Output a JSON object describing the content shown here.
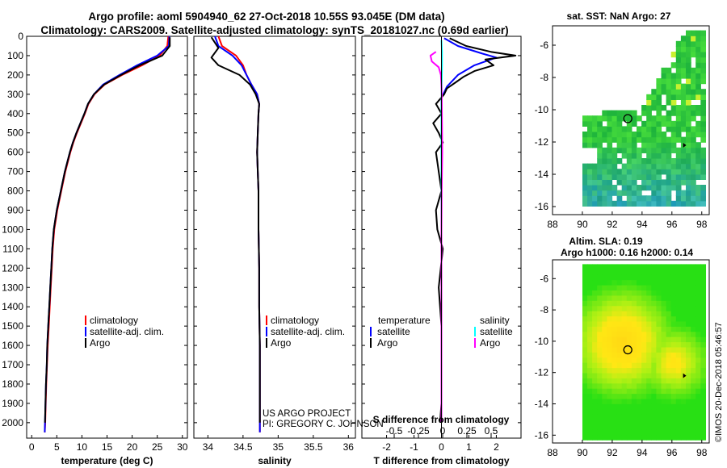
{
  "title_line1": "Argo profile: aoml 5904940_62 27-Oct-2018 10.55S 93.045E (DM data)",
  "title_line2": "Climatology: CARS2009. Satellite-adjusted climatology: synTS_20181027.nc (0.69d earlier)",
  "sst_title": "sat. SST: NaN Argo: 27",
  "sla_title1": "Altim. SLA: 0.19",
  "sla_title2": "Argo h1000: 0.16 h2000: 0.14",
  "credit": "©IMOS 20-Dec-2018 05:46:57",
  "project_line1": "US ARGO PROJECT",
  "project_line2": "PI: GREGORY C. JOHNSON",
  "colors": {
    "red": "#ff0000",
    "blue": "#0000ff",
    "black": "#000000",
    "magenta": "#ff00ff",
    "cyan": "#00ffff"
  },
  "chart_data": [
    {
      "type": "line",
      "id": "temperature",
      "xlabel": "temperature (deg C)",
      "ylabel": "depth",
      "xlim": [
        -1,
        31
      ],
      "ylim": [
        2080,
        0
      ],
      "xticks": [
        0,
        5,
        10,
        15,
        20,
        25,
        30
      ],
      "xtick_labels": [
        "0",
        "5",
        "10",
        "15",
        "20",
        "25",
        "30"
      ],
      "yticks": [
        0,
        100,
        200,
        300,
        400,
        500,
        600,
        700,
        800,
        900,
        1000,
        1100,
        1200,
        1300,
        1400,
        1500,
        1600,
        1700,
        1800,
        1900,
        2000
      ],
      "legend": [
        "climatology",
        "satellite-adj. clim.",
        "Argo"
      ],
      "series": [
        {
          "name": "climatology",
          "color": "red",
          "x": [
            27.2,
            27.0,
            25.5,
            22.0,
            18.0,
            14.5,
            12.5,
            11.3,
            10.6,
            9.8,
            9.0,
            8.3,
            7.7,
            7.2,
            6.7,
            6.3,
            5.9,
            5.5,
            5.1,
            4.8,
            4.5,
            4.2,
            4.0,
            3.8,
            3.6,
            3.4,
            3.2,
            3.05,
            2.9,
            2.8,
            2.7,
            2.6
          ],
          "depth": [
            0,
            50,
            100,
            150,
            200,
            250,
            300,
            350,
            400,
            450,
            500,
            550,
            600,
            650,
            700,
            750,
            800,
            850,
            900,
            950,
            1000,
            1100,
            1200,
            1300,
            1400,
            1500,
            1600,
            1700,
            1800,
            1900,
            2000,
            2050
          ]
        },
        {
          "name": "satellite-adj. clim.",
          "color": "blue",
          "x": [
            27.4,
            27.3,
            25.0,
            21.0,
            17.5,
            14.2,
            12.4,
            11.2,
            10.5,
            9.7,
            8.9,
            8.2,
            7.6,
            7.1,
            6.6,
            6.2,
            5.8,
            5.4,
            5.0,
            4.7,
            4.4,
            4.1,
            3.9,
            3.7,
            3.5,
            3.3,
            3.1,
            3.0,
            2.85,
            2.75,
            2.65,
            2.6
          ],
          "depth": [
            0,
            50,
            100,
            150,
            200,
            250,
            300,
            350,
            400,
            450,
            500,
            550,
            600,
            650,
            700,
            750,
            800,
            850,
            900,
            950,
            1000,
            1100,
            1200,
            1300,
            1400,
            1500,
            1600,
            1700,
            1800,
            1900,
            2000,
            2050
          ]
        },
        {
          "name": "Argo",
          "color": "black",
          "x": [
            27.5,
            27.5,
            26.0,
            21.5,
            17.8,
            14.4,
            12.4,
            11.2,
            10.5,
            9.7,
            8.9,
            8.2,
            7.6,
            7.1,
            6.6,
            6.2,
            5.8,
            5.4,
            5.0,
            4.7,
            4.4,
            4.1,
            3.9,
            3.7,
            3.5,
            3.3,
            3.1,
            3.0,
            2.85,
            2.75,
            2.65
          ],
          "depth": [
            5,
            50,
            100,
            150,
            200,
            250,
            300,
            350,
            400,
            450,
            500,
            550,
            600,
            650,
            700,
            750,
            800,
            850,
            900,
            950,
            1000,
            1100,
            1200,
            1300,
            1400,
            1500,
            1600,
            1700,
            1800,
            1900,
            2000
          ]
        }
      ]
    },
    {
      "type": "line",
      "id": "salinity",
      "xlabel": "salinity",
      "xlim": [
        33.8,
        36.1
      ],
      "ylim": [
        2080,
        0
      ],
      "xticks": [
        34,
        34.5,
        35,
        35.5,
        36
      ],
      "xtick_labels": [
        "34",
        "34.5",
        "35",
        "35.5",
        "36"
      ],
      "legend": [
        "climatology",
        "satellite-adj. clim.",
        "Argo"
      ],
      "series": [
        {
          "name": "climatology",
          "color": "red",
          "x": [
            34.15,
            34.2,
            34.4,
            34.5,
            34.55,
            34.62,
            34.7,
            34.73,
            34.72,
            34.71,
            34.7,
            34.71,
            34.72,
            34.72,
            34.73,
            34.73,
            34.74,
            34.74,
            34.74,
            34.74
          ],
          "depth": [
            0,
            50,
            100,
            150,
            200,
            250,
            300,
            350,
            400,
            500,
            600,
            700,
            800,
            1000,
            1200,
            1400,
            1600,
            1800,
            2000,
            2050
          ]
        },
        {
          "name": "satellite-adj. clim.",
          "color": "blue",
          "x": [
            34.1,
            34.15,
            34.35,
            34.48,
            34.55,
            34.62,
            34.7,
            34.73,
            34.72,
            34.71,
            34.7,
            34.71,
            34.72,
            34.72,
            34.73,
            34.73,
            34.74,
            34.74,
            34.74,
            34.74
          ],
          "depth": [
            0,
            50,
            100,
            150,
            200,
            250,
            300,
            350,
            400,
            500,
            600,
            700,
            800,
            1000,
            1200,
            1400,
            1600,
            1800,
            2000,
            2050
          ]
        },
        {
          "name": "Argo",
          "color": "black",
          "x": [
            34.05,
            34.15,
            34.05,
            34.15,
            34.45,
            34.6,
            34.68,
            34.73,
            34.72,
            34.71,
            34.7,
            34.71,
            34.72,
            34.72,
            34.73,
            34.73,
            34.74,
            34.74,
            34.74
          ],
          "depth": [
            5,
            60,
            110,
            150,
            200,
            250,
            300,
            350,
            400,
            500,
            600,
            700,
            800,
            1000,
            1200,
            1400,
            1600,
            1800,
            2000
          ]
        }
      ]
    },
    {
      "type": "line",
      "id": "difference",
      "xlabel": "T difference from climatology",
      "xlabel2": "S difference from climatology",
      "xlim": [
        -2.9,
        2.9
      ],
      "ylim": [
        2080,
        0
      ],
      "xticks": [
        -2,
        -1,
        0,
        1,
        2
      ],
      "xtick_labels": [
        "-2",
        "-1",
        "0",
        "1",
        "2"
      ],
      "sticks": [
        -0.5,
        -0.25,
        0,
        0.25,
        0.5
      ],
      "stick_labels": [
        "-0.5",
        "-0.25",
        "0",
        "0.25",
        "0.5"
      ],
      "legend_left_title": "temperature",
      "legend_left": [
        "satellite",
        "Argo"
      ],
      "legend_right_title": "salinity",
      "legend_right": [
        "satellite",
        "Argo"
      ],
      "series": [
        {
          "name": "T satellite",
          "color": "blue",
          "x": [
            0.1,
            0.6,
            1.5,
            2.0,
            1.2,
            0.6,
            0.2,
            0.0,
            0.0,
            0.0,
            0.0,
            0.0,
            0.0,
            0.0
          ],
          "depth": [
            10,
            50,
            90,
            110,
            150,
            200,
            260,
            320,
            400,
            600,
            800,
            1200,
            1600,
            2000
          ]
        },
        {
          "name": "T Argo",
          "color": "black",
          "x": [
            0.3,
            0.9,
            1.8,
            2.7,
            1.6,
            1.9,
            1.2,
            0.8,
            0.5,
            0.2,
            0.1,
            -0.2,
            0.0,
            -0.3,
            -0.1,
            0.05,
            -0.2,
            -0.1,
            0.0,
            -0.2,
            -0.15,
            0.05,
            -0.1,
            0.0,
            0.0,
            0.0,
            -0.05
          ],
          "depth": [
            10,
            50,
            80,
            100,
            120,
            150,
            180,
            210,
            240,
            270,
            300,
            350,
            400,
            450,
            500,
            550,
            600,
            700,
            800,
            900,
            1000,
            1100,
            1300,
            1500,
            1700,
            1900,
            2000
          ]
        },
        {
          "name": "S satellite",
          "color": "cyan",
          "x": [
            0.0,
            0.02,
            0.02,
            0.01,
            0.0,
            0.0,
            0.0,
            0.0,
            0.0
          ],
          "depth": [
            20,
            80,
            150,
            250,
            400,
            700,
            1000,
            1500,
            2000
          ]
        },
        {
          "name": "S Argo",
          "color": "magenta",
          "x": [
            -0.2,
            -0.4,
            -0.35,
            -0.1,
            -0.02,
            0.01,
            0.03,
            0.01,
            0.0,
            0.0,
            0.0,
            0.0
          ],
          "depth": [
            80,
            100,
            130,
            160,
            200,
            280,
            600,
            800,
            1000,
            1400,
            1800,
            2000
          ]
        }
      ]
    },
    {
      "type": "heatmap",
      "id": "sst_map",
      "title": "sat. SST: NaN Argo: 27",
      "xlim": [
        88,
        98.5
      ],
      "ylim": [
        -16.5,
        -4.8
      ],
      "xticks": [
        88,
        90,
        92,
        94,
        96,
        98
      ],
      "xtick_labels": [
        "88",
        "90",
        "92",
        "94",
        "96",
        "98"
      ],
      "yticks": [
        -6,
        -8,
        -10,
        -12,
        -14,
        -16
      ],
      "ytick_labels": [
        "-6",
        "-8",
        "-10",
        "-12",
        "-14",
        "-16"
      ],
      "argo_position": [
        93.045,
        -10.55
      ],
      "marker_position": [
        96.8,
        -12.2
      ]
    },
    {
      "type": "heatmap",
      "id": "sla_map",
      "title": "Altim. SLA: 0.19",
      "xlim": [
        88,
        98.5
      ],
      "ylim": [
        -16.5,
        -4.8
      ],
      "xticks": [
        88,
        90,
        92,
        94,
        96,
        98
      ],
      "xtick_labels": [
        "88",
        "90",
        "92",
        "94",
        "96",
        "98"
      ],
      "yticks": [
        -6,
        -8,
        -10,
        -12,
        -14,
        -16
      ],
      "ytick_labels": [
        "-6",
        "-8",
        "-10",
        "-12",
        "-14",
        "-16"
      ],
      "argo_position": [
        93.045,
        -10.55
      ],
      "marker_position": [
        96.8,
        -12.2
      ]
    }
  ]
}
